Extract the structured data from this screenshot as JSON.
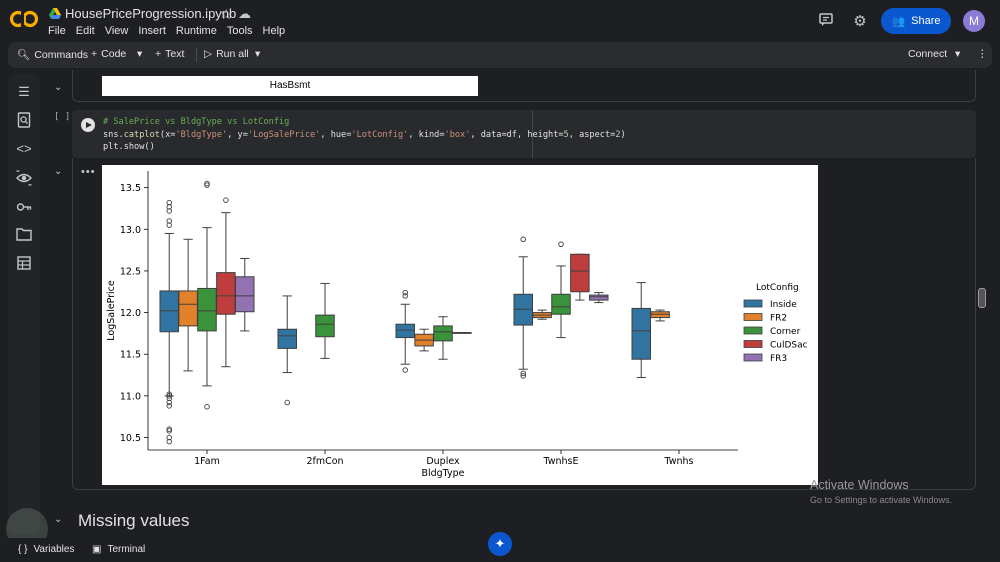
{
  "header": {
    "title": "HousePriceProgression.ipynb",
    "menu": [
      "File",
      "Edit",
      "View",
      "Insert",
      "Runtime",
      "Tools",
      "Help"
    ],
    "share_label": "Share",
    "avatar_letter": "M"
  },
  "toolbar": {
    "commands": "Commands",
    "code": "Code",
    "text": "Text",
    "run_all": "Run all",
    "connect": "Connect"
  },
  "cells": {
    "prev_output": "HasBsmt",
    "bracket": "[ ]",
    "code_comment": "# SalePrice vs BldgType vs LotConfig",
    "code_line2_a": "sns.",
    "code_line2_fn": "catplot",
    "code_line2_b": "(x=",
    "code_line2_s1": "'BldgType'",
    "code_line2_c": ", y=",
    "code_line2_s2": "'LogSalePrice'",
    "code_line2_d": ", hue=",
    "code_line2_s3": "'LotConfig'",
    "code_line2_e": ", kind=",
    "code_line2_s4": "'box'",
    "code_line2_f": ", data=df, height=",
    "code_line2_n1": "5",
    "code_line2_g": ", aspect=",
    "code_line2_n2": "2",
    "code_line2_h": ")",
    "code_line3": "plt.show()",
    "output_dots": "•••",
    "md_heading": "Missing values"
  },
  "bottom": {
    "variables": "Variables",
    "terminal": "Terminal"
  },
  "watermark": {
    "line1": "Activate Windows",
    "line2": "Go to Settings to activate Windows."
  },
  "colors": {
    "Inside": "#3274a1",
    "FR2": "#e1812c",
    "Corner": "#3a923a",
    "CulDSac": "#c03d3e",
    "FR3": "#9372b2"
  },
  "chart_data": {
    "type": "box",
    "xlabel": "BldgType",
    "ylabel": "LogSalePrice",
    "categories": [
      "1Fam",
      "2fmCon",
      "Duplex",
      "TwnhsE",
      "Twnhs"
    ],
    "legend_title": "LotConfig",
    "legend_placement": "right",
    "hue_order": [
      "Inside",
      "FR2",
      "Corner",
      "CulDSac",
      "FR3"
    ],
    "ylim": [
      10.35,
      13.7
    ],
    "yticks": [
      10.5,
      11.0,
      11.5,
      12.0,
      12.5,
      13.0,
      13.5
    ],
    "boxes": [
      {
        "category": "1Fam",
        "hue": "Inside",
        "whislo": 11.0,
        "q1": 11.77,
        "med": 12.02,
        "q3": 12.26,
        "whishi": 12.95,
        "fliers": [
          10.45,
          10.5,
          10.58,
          10.6,
          10.88,
          10.92,
          10.97,
          11.0,
          11.02,
          13.05,
          13.1,
          13.22,
          13.27,
          13.32
        ]
      },
      {
        "category": "1Fam",
        "hue": "FR2",
        "whislo": 11.3,
        "q1": 11.84,
        "med": 12.1,
        "q3": 12.26,
        "whishi": 12.88,
        "fliers": []
      },
      {
        "category": "1Fam",
        "hue": "Corner",
        "whislo": 11.12,
        "q1": 11.78,
        "med": 12.02,
        "q3": 12.29,
        "whishi": 13.02,
        "fliers": [
          10.87,
          13.53,
          13.55
        ]
      },
      {
        "category": "1Fam",
        "hue": "CulDSac",
        "whislo": 11.35,
        "q1": 11.98,
        "med": 12.2,
        "q3": 12.48,
        "whishi": 13.2,
        "fliers": [
          13.35
        ]
      },
      {
        "category": "1Fam",
        "hue": "FR3",
        "whislo": 11.78,
        "q1": 12.01,
        "med": 12.2,
        "q3": 12.43,
        "whishi": 12.65,
        "fliers": []
      },
      {
        "category": "2fmCon",
        "hue": "Inside",
        "whislo": 11.28,
        "q1": 11.57,
        "med": 11.72,
        "q3": 11.8,
        "whishi": 12.2,
        "fliers": [
          10.92
        ]
      },
      {
        "category": "2fmCon",
        "hue": "Corner",
        "whislo": 11.45,
        "q1": 11.71,
        "med": 11.86,
        "q3": 11.97,
        "whishi": 12.35,
        "fliers": []
      },
      {
        "category": "Duplex",
        "hue": "Inside",
        "whislo": 11.38,
        "q1": 11.7,
        "med": 11.79,
        "q3": 11.86,
        "whishi": 12.1,
        "fliers": [
          11.31,
          12.2,
          12.24
        ]
      },
      {
        "category": "Duplex",
        "hue": "FR2",
        "whislo": 11.54,
        "q1": 11.6,
        "med": 11.67,
        "q3": 11.74,
        "whishi": 11.8,
        "fliers": []
      },
      {
        "category": "Duplex",
        "hue": "Corner",
        "whislo": 11.44,
        "q1": 11.66,
        "med": 11.77,
        "q3": 11.84,
        "whishi": 11.95,
        "fliers": []
      },
      {
        "category": "Duplex",
        "hue": "CulDSac",
        "whislo": 11.76,
        "q1": 11.76,
        "med": 11.76,
        "q3": 11.76,
        "whishi": 11.76,
        "fliers": []
      },
      {
        "category": "TwnhsE",
        "hue": "Inside",
        "whislo": 11.32,
        "q1": 11.85,
        "med": 12.04,
        "q3": 12.22,
        "whishi": 12.67,
        "fliers": [
          11.24,
          11.27,
          12.88
        ]
      },
      {
        "category": "TwnhsE",
        "hue": "FR2",
        "whislo": 11.92,
        "q1": 11.94,
        "med": 11.97,
        "q3": 12.0,
        "whishi": 12.03,
        "fliers": []
      },
      {
        "category": "TwnhsE",
        "hue": "Corner",
        "whislo": 11.7,
        "q1": 11.98,
        "med": 12.07,
        "q3": 12.22,
        "whishi": 12.56,
        "fliers": [
          12.82
        ]
      },
      {
        "category": "TwnhsE",
        "hue": "CulDSac",
        "whislo": 12.15,
        "q1": 12.25,
        "med": 12.5,
        "q3": 12.7,
        "whishi": 12.7,
        "fliers": []
      },
      {
        "category": "TwnhsE",
        "hue": "FR3",
        "whislo": 12.12,
        "q1": 12.15,
        "med": 12.19,
        "q3": 12.21,
        "whishi": 12.24,
        "fliers": []
      },
      {
        "category": "Twnhs",
        "hue": "Inside",
        "whislo": 11.22,
        "q1": 11.44,
        "med": 11.78,
        "q3": 12.05,
        "whishi": 12.36,
        "fliers": []
      },
      {
        "category": "Twnhs",
        "hue": "FR2",
        "whislo": 11.9,
        "q1": 11.94,
        "med": 11.98,
        "q3": 12.01,
        "whishi": 12.03,
        "fliers": []
      }
    ]
  }
}
